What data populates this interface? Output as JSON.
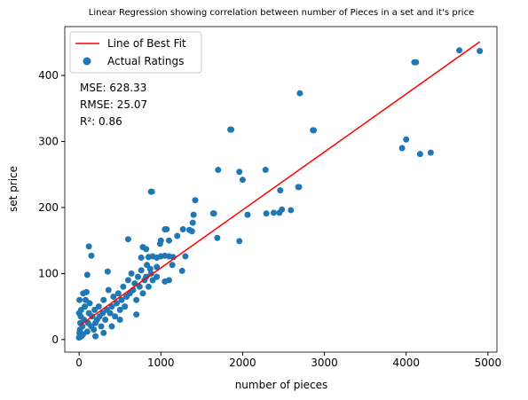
{
  "chart_data": {
    "type": "scatter",
    "title": "Linear Regression showing correlation between number of Pieces in a set and it's price",
    "x_label": "number of pieces",
    "y_label": "set price",
    "annotations": [
      "MSE: 628.33",
      "RMSE: 25.07",
      "R²: 0.86"
    ],
    "xlim": [
      -175,
      5110
    ],
    "ylim": [
      -19,
      474
    ],
    "xticks": [
      0,
      1000,
      2000,
      3000,
      4000,
      5000
    ],
    "yticks": [
      0,
      100,
      200,
      300,
      400
    ],
    "grid": false,
    "legend": "upper left",
    "series": [
      {
        "name": "Line of Best Fit",
        "type": "line",
        "color": "#ff0000",
        "x": [
          15,
          4900
        ],
        "values": [
          22,
          451
        ]
      },
      {
        "name": "Actual Ratings",
        "type": "scatter",
        "color": "#1f77b4",
        "x": [
          4650,
          4900,
          4100,
          4120,
          3950,
          4000,
          4170,
          4300,
          2700,
          2860,
          2870,
          1850,
          1860,
          1700,
          1960,
          2000,
          2280,
          2460,
          2680,
          2690,
          2480,
          2590,
          2450,
          2380,
          2290,
          2060,
          1640,
          1650,
          1960,
          1690,
          1420,
          1400,
          1390,
          1380,
          1350,
          1270,
          1200,
          1070,
          1000,
          880,
          890,
          990,
          780,
          820,
          760,
          850,
          900,
          950,
          1050,
          1100,
          1150,
          1300,
          1260,
          1100,
          1050,
          870,
          950,
          120,
          150,
          100,
          350,
          600,
          700,
          1050,
          1100,
          1000,
          830,
          1140,
          0,
          5,
          10,
          15,
          20,
          25,
          30,
          40,
          50,
          60,
          70,
          80,
          90,
          100,
          110,
          120,
          130,
          150,
          160,
          180,
          190,
          200,
          220,
          240,
          250,
          270,
          290,
          300,
          320,
          340,
          360,
          380,
          400,
          420,
          440,
          460,
          480,
          500,
          520,
          540,
          560,
          580,
          600,
          620,
          640,
          660,
          680,
          700,
          720,
          740,
          760,
          780,
          800,
          820,
          850,
          880,
          900,
          950,
          0,
          5,
          50,
          300,
          200,
          400,
          500
        ],
        "values": [
          438,
          437,
          420,
          420,
          290,
          303,
          281,
          283,
          373,
          317,
          317,
          318,
          318,
          257,
          254,
          242,
          257,
          226,
          231,
          231,
          197,
          196,
          192,
          192,
          191,
          189,
          191,
          191,
          149,
          154,
          211,
          189,
          177,
          164,
          166,
          167,
          157,
          167,
          150,
          224,
          224,
          145,
          140,
          137,
          124,
          125,
          126,
          124,
          127,
          126,
          125,
          126,
          104,
          90,
          88,
          107,
          110,
          141,
          127,
          98,
          103,
          152,
          38,
          167,
          150,
          126,
          113,
          113,
          3,
          10,
          15,
          25,
          35,
          45,
          5,
          20,
          8,
          30,
          50,
          60,
          72,
          12,
          25,
          40,
          55,
          20,
          35,
          15,
          45,
          25,
          30,
          50,
          35,
          20,
          40,
          60,
          30,
          45,
          75,
          40,
          50,
          65,
          35,
          55,
          70,
          45,
          60,
          80,
          50,
          65,
          90,
          70,
          100,
          75,
          85,
          60,
          95,
          80,
          105,
          70,
          90,
          95,
          80,
          100,
          90,
          95,
          40,
          60,
          70,
          10,
          5,
          20,
          30
        ]
      }
    ]
  }
}
